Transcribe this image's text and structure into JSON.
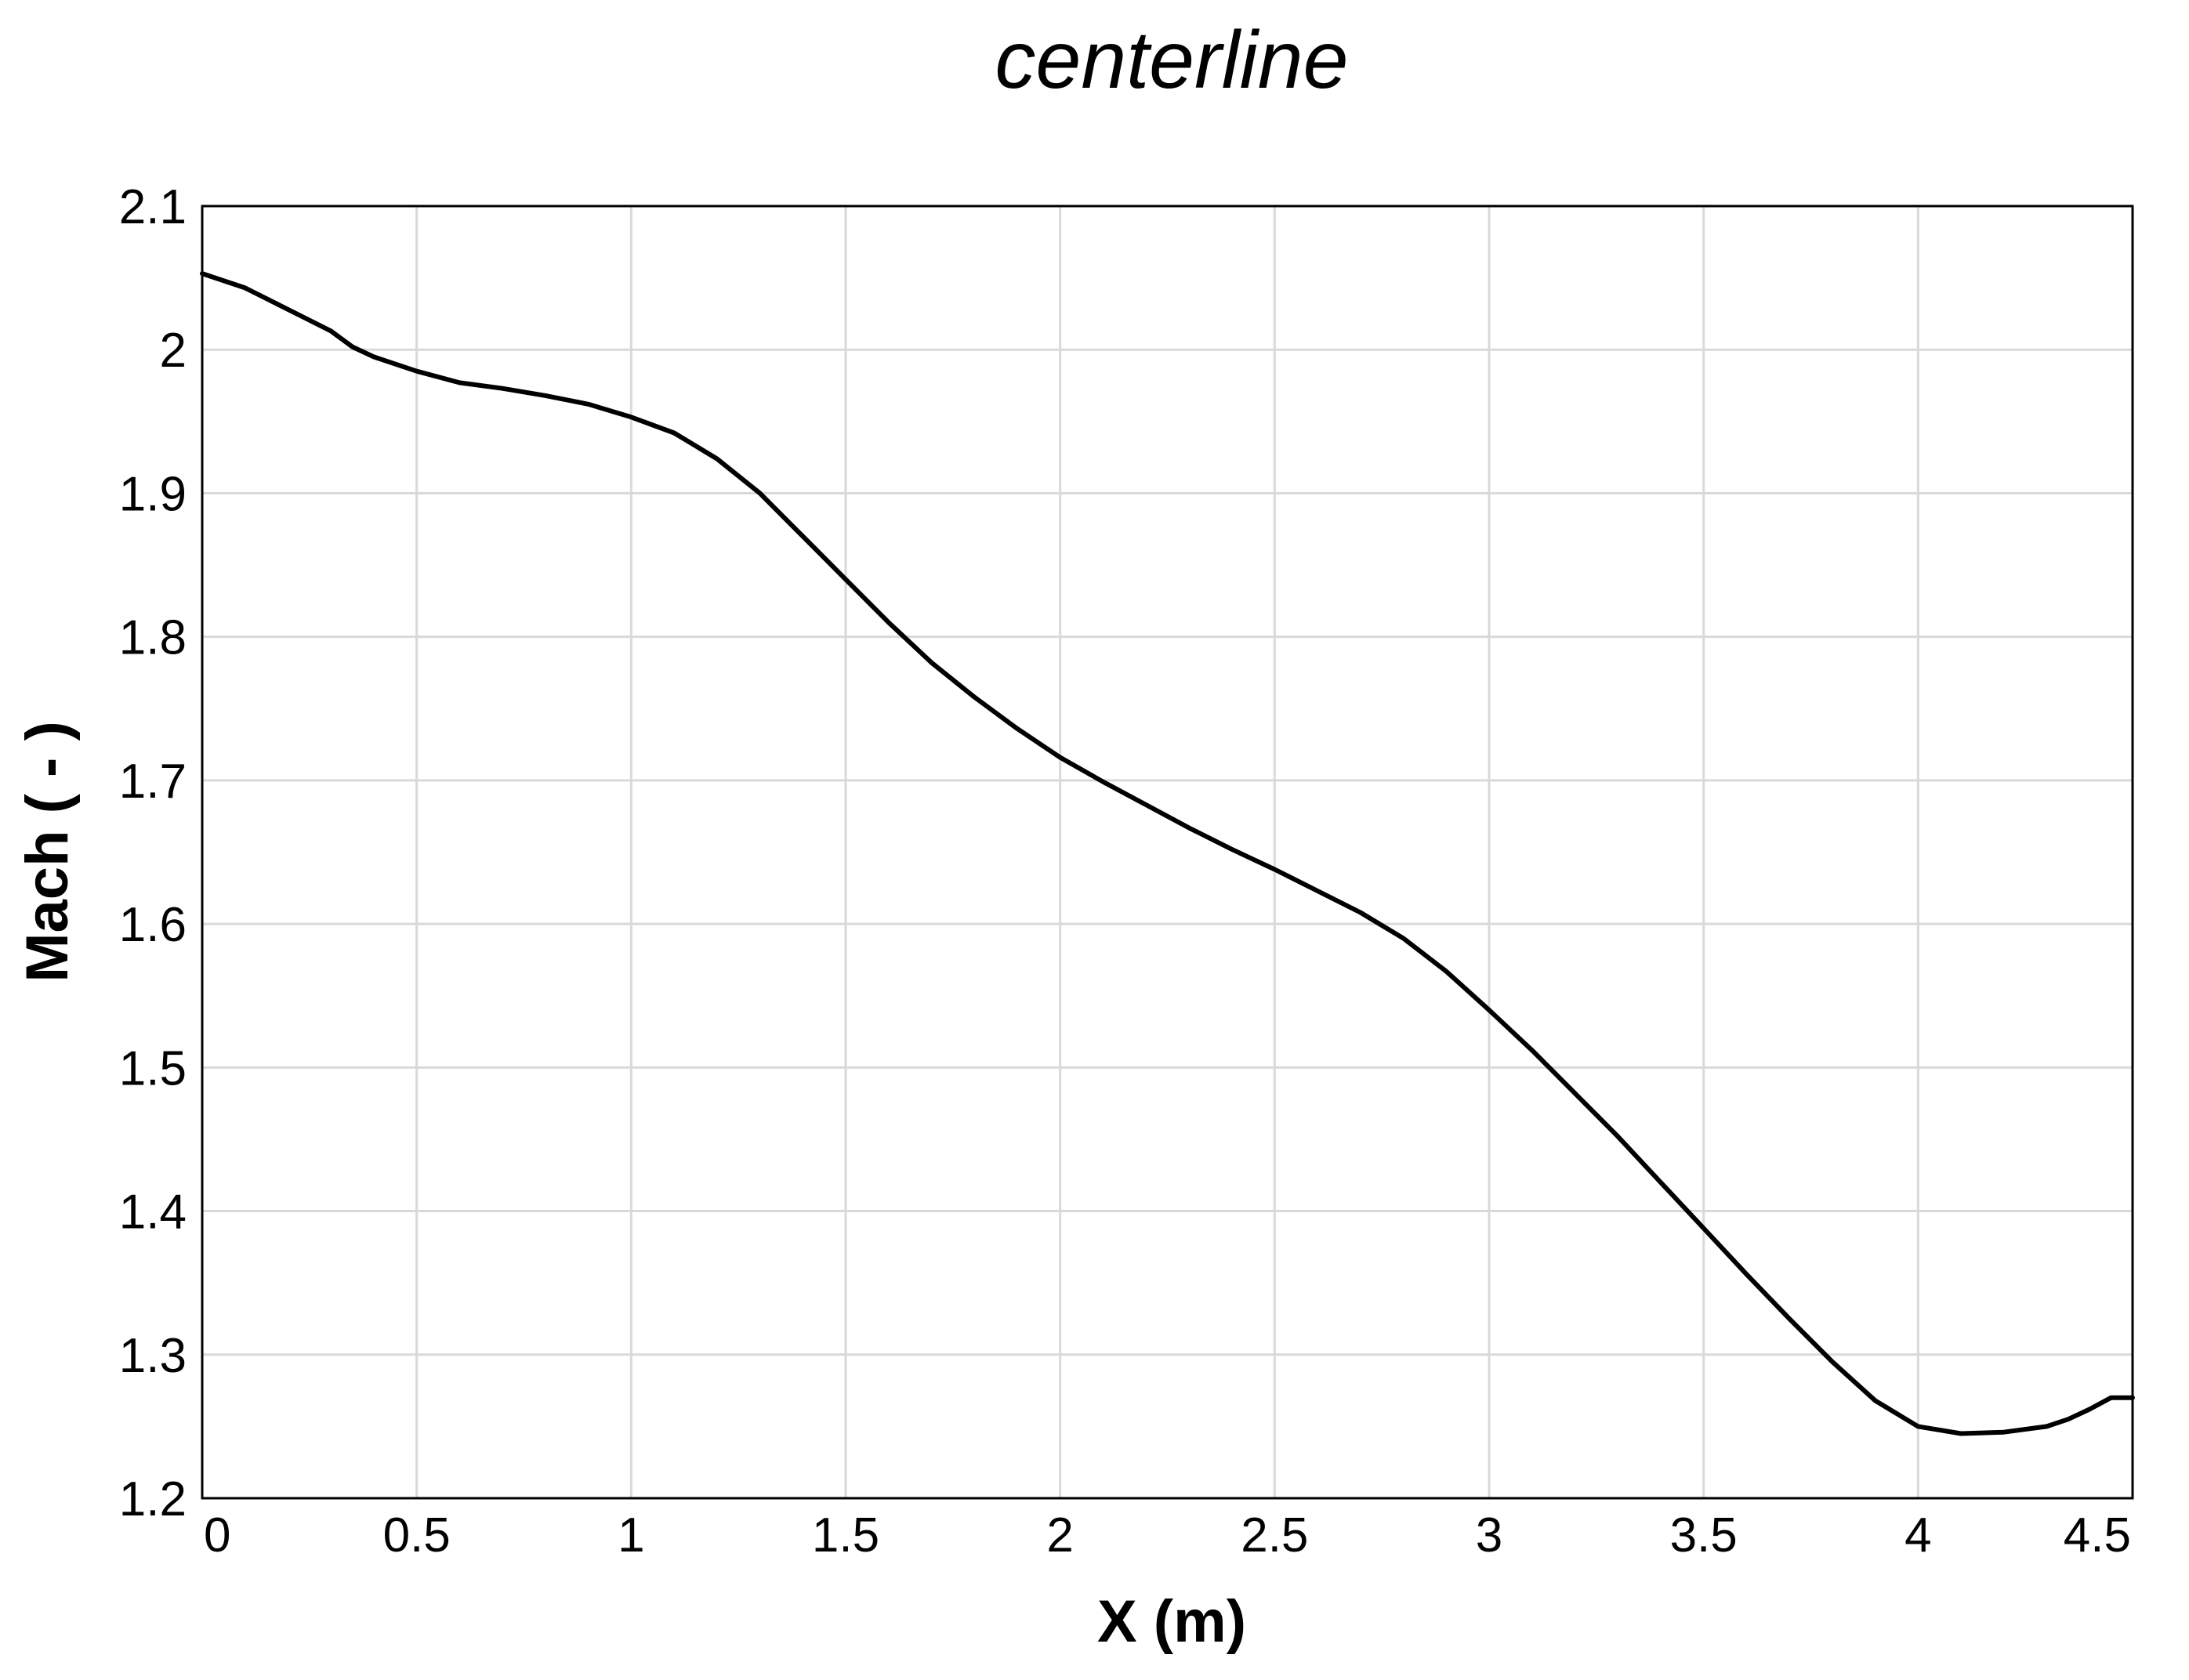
{
  "chart_data": {
    "type": "line",
    "title": "centerline",
    "xlabel": "X (m)",
    "ylabel": "Mach ( - )",
    "xlim": [
      0,
      4.5
    ],
    "ylim": [
      1.2,
      2.1
    ],
    "xticks": [
      "0",
      "0.5",
      "1",
      "1.5",
      "2",
      "2.5",
      "3",
      "3.5",
      "4",
      "4.5"
    ],
    "yticks": [
      "1.2",
      "1.3",
      "1.4",
      "1.5",
      "1.6",
      "1.7",
      "1.8",
      "1.9",
      "2",
      "2.1"
    ],
    "grid": true,
    "series": [
      {
        "color": "#000000",
        "x": [
          0,
          0.1,
          0.2,
          0.3,
          0.35,
          0.4,
          0.5,
          0.6,
          0.7,
          0.8,
          0.9,
          1.0,
          1.1,
          1.2,
          1.3,
          1.4,
          1.5,
          1.6,
          1.7,
          1.8,
          1.9,
          2.0,
          2.1,
          2.2,
          2.3,
          2.4,
          2.5,
          2.6,
          2.7,
          2.8,
          2.9,
          3.0,
          3.1,
          3.2,
          3.3,
          3.4,
          3.5,
          3.6,
          3.7,
          3.8,
          3.9,
          4.0,
          4.1,
          4.2,
          4.3,
          4.35,
          4.4,
          4.45,
          4.5
        ],
        "y": [
          2.053,
          2.043,
          2.028,
          2.013,
          2.002,
          1.995,
          1.985,
          1.977,
          1.973,
          1.968,
          1.962,
          1.953,
          1.942,
          1.924,
          1.9,
          1.87,
          1.84,
          1.81,
          1.782,
          1.758,
          1.736,
          1.716,
          1.699,
          1.683,
          1.667,
          1.652,
          1.638,
          1.623,
          1.608,
          1.59,
          1.567,
          1.54,
          1.512,
          1.482,
          1.452,
          1.42,
          1.388,
          1.356,
          1.325,
          1.295,
          1.268,
          1.25,
          1.245,
          1.246,
          1.25,
          1.255,
          1.262,
          1.27,
          1.27
        ]
      }
    ]
  }
}
